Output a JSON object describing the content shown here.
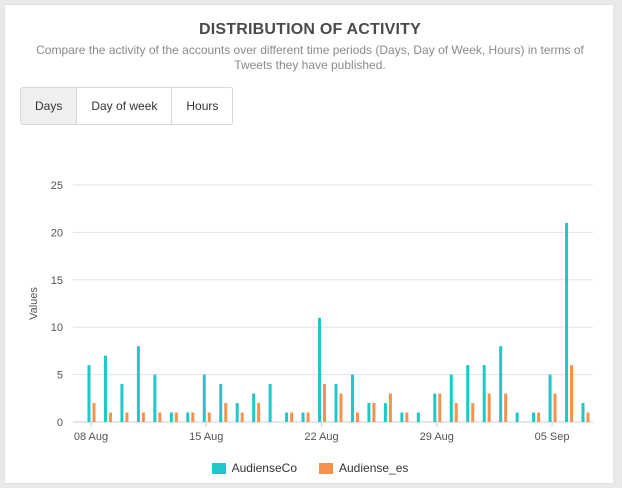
{
  "header": {
    "title": "DISTRIBUTION OF ACTIVITY",
    "subtitle": "Compare the activity of the accounts over different time periods (Days, Day of Week, Hours) in terms of Tweets they have published."
  },
  "tabs": [
    {
      "label": "Days",
      "active": true
    },
    {
      "label": "Day of week",
      "active": false
    },
    {
      "label": "Hours",
      "active": false
    }
  ],
  "colors": {
    "series1": "#1fc7c9",
    "series2": "#f5934e",
    "grid": "#e3e3e3",
    "axis": "#555555"
  },
  "chart_data": {
    "type": "bar",
    "ylabel": "Values",
    "xlabel": "",
    "ylim": [
      0,
      25
    ],
    "yticks": [
      0,
      5,
      10,
      15,
      20,
      25
    ],
    "grid": true,
    "legend_position": "bottom-center",
    "categories": [
      "08 Aug",
      "09 Aug",
      "10 Aug",
      "11 Aug",
      "12 Aug",
      "13 Aug",
      "14 Aug",
      "15 Aug",
      "16 Aug",
      "17 Aug",
      "18 Aug",
      "19 Aug",
      "20 Aug",
      "21 Aug",
      "22 Aug",
      "23 Aug",
      "24 Aug",
      "25 Aug",
      "26 Aug",
      "27 Aug",
      "28 Aug",
      "29 Aug",
      "30 Aug",
      "31 Aug",
      "01 Sep",
      "02 Sep",
      "03 Sep",
      "04 Sep",
      "05 Sep",
      "06 Sep",
      "07 Sep"
    ],
    "xtick_labels": [
      {
        "index": 0,
        "label": "08 Aug"
      },
      {
        "index": 7,
        "label": "15 Aug"
      },
      {
        "index": 14,
        "label": "22 Aug"
      },
      {
        "index": 21,
        "label": "29 Aug"
      },
      {
        "index": 28,
        "label": "05 Sep"
      }
    ],
    "series": [
      {
        "name": "AudienseCo",
        "values": [
          6,
          7,
          4,
          8,
          5,
          1,
          1,
          5,
          4,
          2,
          3,
          4,
          1,
          1,
          11,
          4,
          5,
          2,
          2,
          1,
          1,
          3,
          5,
          6,
          6,
          8,
          1,
          1,
          5,
          21,
          2
        ]
      },
      {
        "name": "Audiense_es",
        "values": [
          2,
          1,
          1,
          1,
          1,
          1,
          1,
          1,
          2,
          1,
          2,
          0,
          1,
          1,
          4,
          3,
          1,
          2,
          3,
          1,
          0,
          3,
          2,
          2,
          3,
          3,
          0,
          1,
          3,
          6,
          1
        ]
      }
    ]
  }
}
